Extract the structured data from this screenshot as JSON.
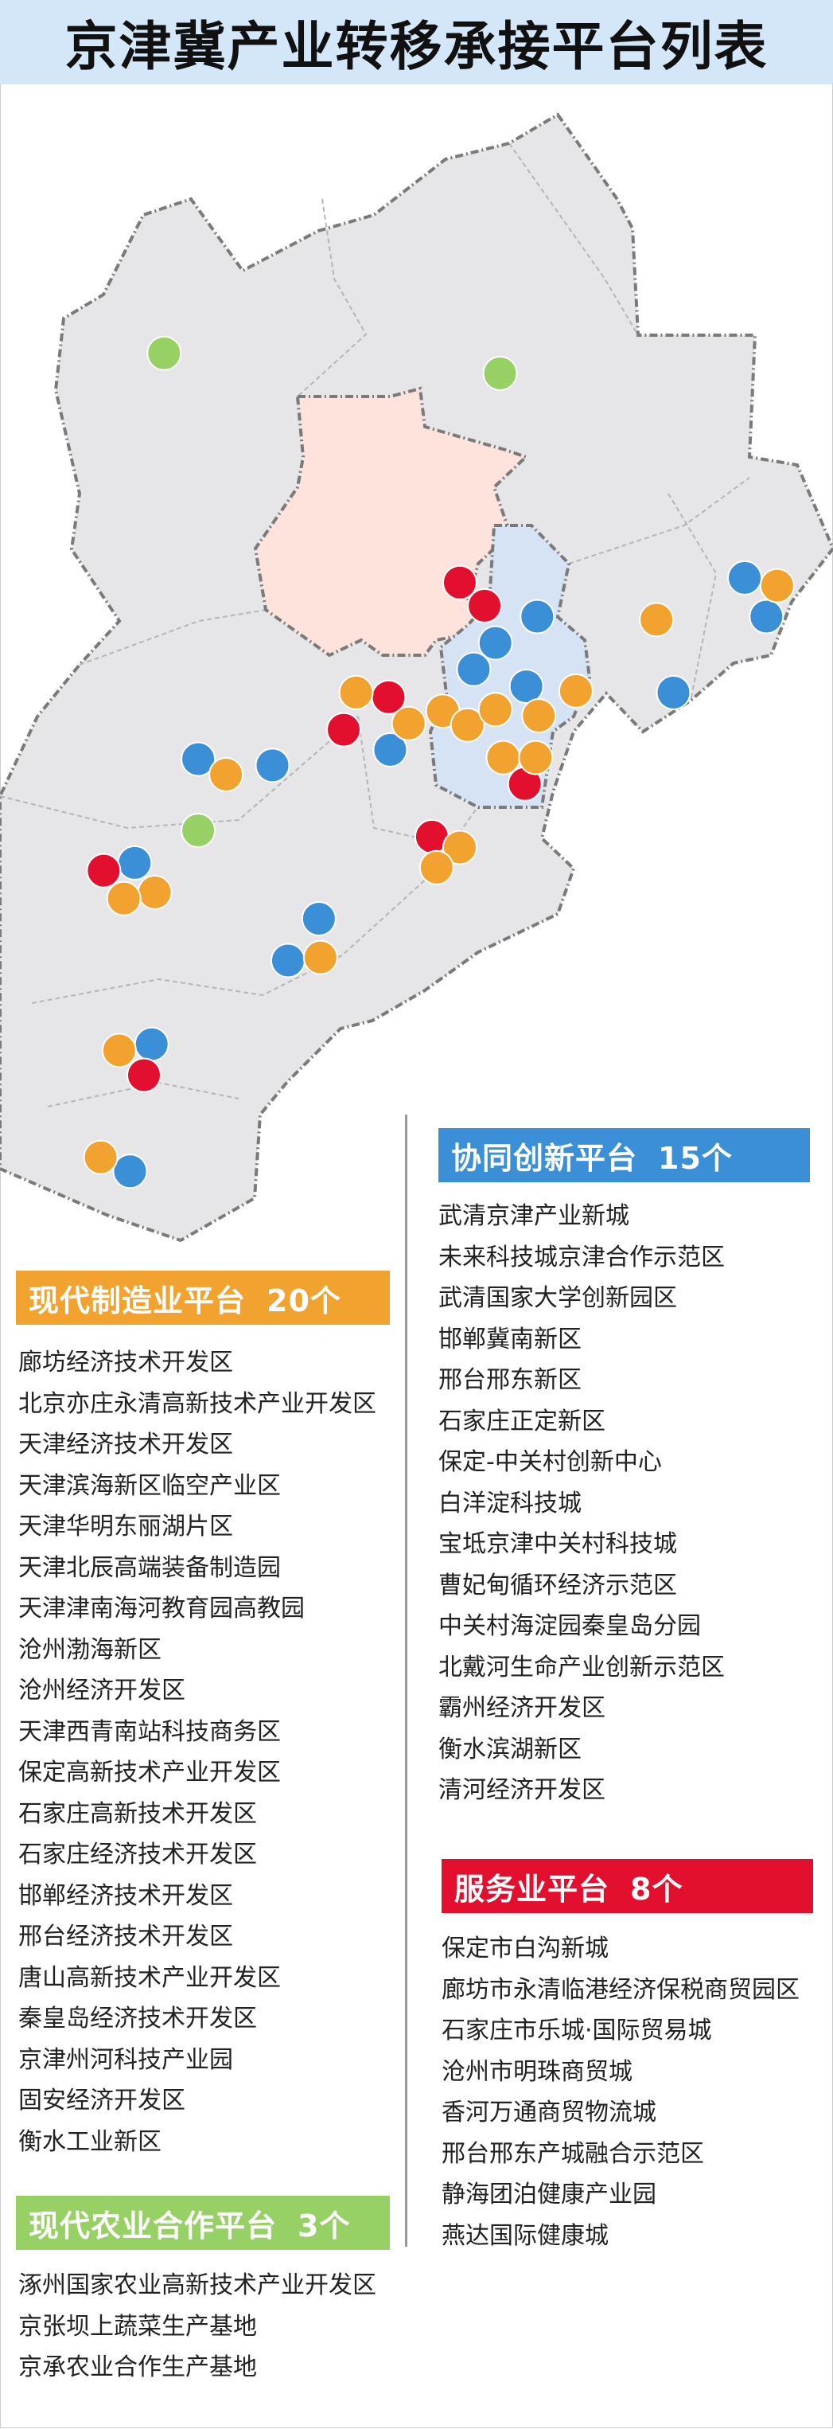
{
  "title": "京津冀产业转移承接平台列表",
  "colors": {
    "manufacturing": "#f2a22f",
    "innovation": "#3a8fd6",
    "service": "#e2102e",
    "agriculture": "#97d064",
    "beijing": "#fde3dc",
    "tianjin": "#d5e3f5",
    "hebei": "#e6e6e8"
  },
  "sections": {
    "innovation": {
      "label": "协同创新平台",
      "count": "15个",
      "items": [
        "武清京津产业新城",
        "未来科技城京津合作示范区",
        "武清国家大学创新园区",
        "邯郸冀南新区",
        "邢台邢东新区",
        "石家庄正定新区",
        "保定-中关村创新中心",
        "白洋淀科技城",
        "宝坻京津中关村科技城",
        "曹妃甸循环经济示范区",
        "中关村海淀园秦皇岛分园",
        "北戴河生命产业创新示范区",
        "霸州经济开发区",
        "衡水滨湖新区",
        "清河经济开发区"
      ]
    },
    "manufacturing": {
      "label": "现代制造业平台",
      "count": "20个",
      "items": [
        "廊坊经济技术开发区",
        "北京亦庄永清高新技术产业开发区",
        "天津经济技术开发区",
        "天津滨海新区临空产业区",
        "天津华明东丽湖片区",
        "天津北辰高端装备制造园",
        "天津津南海河教育园高教园",
        "沧州渤海新区",
        "沧州经济开发区",
        "天津西青南站科技商务区",
        "保定高新技术产业开发区",
        "石家庄高新技术开发区",
        "石家庄经济技术开发区",
        "邯郸经济技术开发区",
        "邢台经济技术开发区",
        "唐山高新技术产业开发区",
        "秦皇岛经济技术开发区",
        "京津州河科技产业园",
        "固安经济开发区",
        "衡水工业新区"
      ]
    },
    "service": {
      "label": "服务业平台",
      "count": "8个",
      "items": [
        "保定市白沟新城",
        "廊坊市永清临港经济保税商贸园区",
        "石家庄市乐城·国际贸易城",
        "沧州市明珠商贸城",
        "香河万通商贸物流城",
        "邢台邢东产城融合示范区",
        "静海团泊健康产业园",
        "燕达国际健康城"
      ]
    },
    "agriculture": {
      "label": "现代农业合作平台",
      "count": "3个",
      "items": [
        "涿州国家农业高新技术产业开发区",
        "京张坝上蔬菜生产基地",
        "京承农业合作生产基地"
      ]
    }
  }
}
